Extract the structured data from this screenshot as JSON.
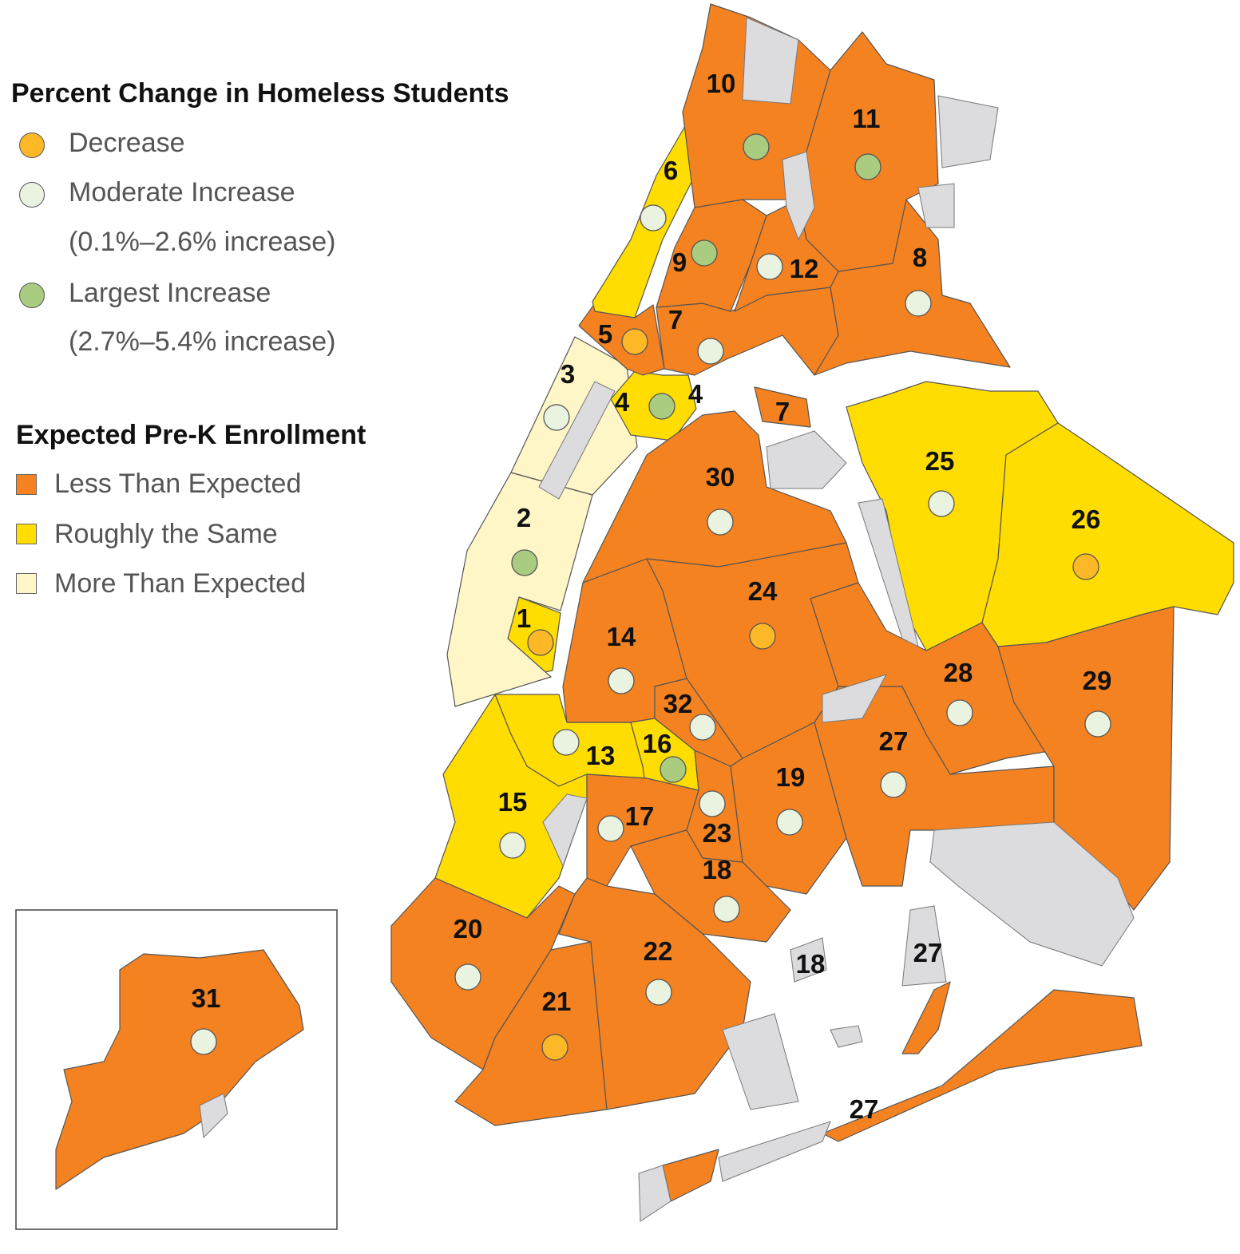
{
  "legend_homeless": {
    "title": "Percent Change in Homeless Students",
    "items": [
      {
        "key": "decrease",
        "label": "Decrease",
        "sub": "",
        "color": "#fdb827"
      },
      {
        "key": "moderate",
        "label": "Moderate Increase",
        "sub": "(0.1%–2.6% increase)",
        "color": "#eaf3e0"
      },
      {
        "key": "largest",
        "label": "Largest Increase",
        "sub": "(2.7%–5.4% increase)",
        "color": "#a9cc80"
      }
    ]
  },
  "legend_prek": {
    "title": "Expected Pre-K Enrollment",
    "items": [
      {
        "key": "less",
        "label": "Less Than Expected",
        "color": "#f58220"
      },
      {
        "key": "same",
        "label": "Roughly the Same",
        "color": "#ffdd00"
      },
      {
        "key": "more",
        "label": "More Than Expected",
        "color": "#fff6c8"
      }
    ]
  },
  "park_color": "#dcdcde",
  "districts": [
    {
      "id": "1",
      "enrollment": "same",
      "homeless": "decrease"
    },
    {
      "id": "2",
      "enrollment": "more",
      "homeless": "largest"
    },
    {
      "id": "3",
      "enrollment": "more",
      "homeless": "moderate"
    },
    {
      "id": "4",
      "enrollment": "same",
      "homeless": "largest"
    },
    {
      "id": "5",
      "enrollment": "less",
      "homeless": "decrease"
    },
    {
      "id": "6",
      "enrollment": "same",
      "homeless": "moderate"
    },
    {
      "id": "7",
      "enrollment": "less",
      "homeless": "moderate"
    },
    {
      "id": "8",
      "enrollment": "less",
      "homeless": "moderate"
    },
    {
      "id": "9",
      "enrollment": "less",
      "homeless": "largest"
    },
    {
      "id": "10",
      "enrollment": "less",
      "homeless": "largest"
    },
    {
      "id": "11",
      "enrollment": "less",
      "homeless": "largest"
    },
    {
      "id": "12",
      "enrollment": "less",
      "homeless": "moderate"
    },
    {
      "id": "13",
      "enrollment": "same",
      "homeless": "moderate"
    },
    {
      "id": "14",
      "enrollment": "less",
      "homeless": "moderate"
    },
    {
      "id": "15",
      "enrollment": "same",
      "homeless": "moderate"
    },
    {
      "id": "16",
      "enrollment": "same",
      "homeless": "largest"
    },
    {
      "id": "17",
      "enrollment": "less",
      "homeless": "moderate"
    },
    {
      "id": "18",
      "enrollment": "less",
      "homeless": "moderate"
    },
    {
      "id": "19",
      "enrollment": "less",
      "homeless": "moderate"
    },
    {
      "id": "20",
      "enrollment": "less",
      "homeless": "moderate"
    },
    {
      "id": "21",
      "enrollment": "less",
      "homeless": "decrease"
    },
    {
      "id": "22",
      "enrollment": "less",
      "homeless": "moderate"
    },
    {
      "id": "23",
      "enrollment": "less",
      "homeless": "moderate"
    },
    {
      "id": "24",
      "enrollment": "less",
      "homeless": "decrease"
    },
    {
      "id": "25",
      "enrollment": "same",
      "homeless": "moderate"
    },
    {
      "id": "26",
      "enrollment": "same",
      "homeless": "decrease"
    },
    {
      "id": "27",
      "enrollment": "less",
      "homeless": "moderate"
    },
    {
      "id": "28",
      "enrollment": "less",
      "homeless": "moderate"
    },
    {
      "id": "29",
      "enrollment": "less",
      "homeless": "moderate"
    },
    {
      "id": "30",
      "enrollment": "less",
      "homeless": "moderate"
    },
    {
      "id": "31",
      "enrollment": "less",
      "homeless": "moderate"
    },
    {
      "id": "32",
      "enrollment": "less",
      "homeless": "moderate"
    }
  ]
}
